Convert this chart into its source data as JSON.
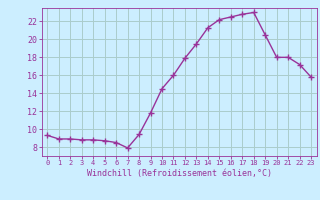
{
  "x": [
    0,
    1,
    2,
    3,
    4,
    5,
    6,
    7,
    8,
    9,
    10,
    11,
    12,
    13,
    14,
    15,
    16,
    17,
    18,
    19,
    20,
    21,
    22,
    23
  ],
  "y": [
    9.3,
    8.9,
    8.9,
    8.8,
    8.8,
    8.7,
    8.5,
    7.9,
    9.4,
    11.8,
    14.5,
    16.0,
    17.9,
    19.5,
    21.3,
    22.2,
    22.5,
    22.8,
    23.0,
    20.5,
    18.0,
    18.0,
    17.2,
    15.8
  ],
  "line_color": "#993399",
  "marker": "+",
  "marker_size": 4,
  "bg_color": "#cceeff",
  "grid_color": "#aacccc",
  "xlabel": "Windchill (Refroidissement éolien,°C)",
  "xlabel_color": "#993399",
  "tick_color": "#993399",
  "xlim": [
    -0.5,
    23.5
  ],
  "ylim": [
    7.0,
    23.5
  ],
  "yticks": [
    8,
    10,
    12,
    14,
    16,
    18,
    20,
    22
  ],
  "xticks": [
    0,
    1,
    2,
    3,
    4,
    5,
    6,
    7,
    8,
    9,
    10,
    11,
    12,
    13,
    14,
    15,
    16,
    17,
    18,
    19,
    20,
    21,
    22,
    23
  ],
  "xtick_labels": [
    "0",
    "1",
    "2",
    "3",
    "4",
    "5",
    "6",
    "7",
    "8",
    "9",
    "10",
    "11",
    "12",
    "13",
    "14",
    "15",
    "16",
    "17",
    "18",
    "19",
    "20",
    "21",
    "22",
    "23"
  ]
}
